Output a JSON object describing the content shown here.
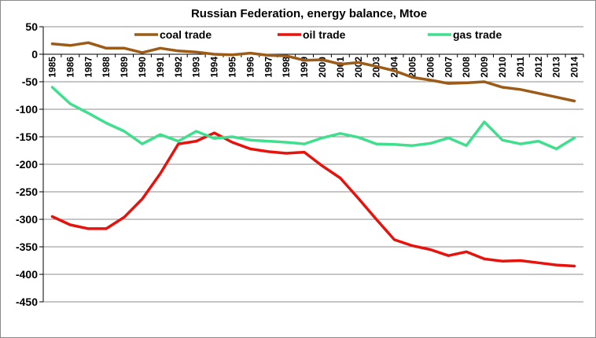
{
  "chart_data": {
    "type": "line",
    "title": "Russian Federation, energy balance, Mtoe",
    "xlabel": "",
    "ylabel": "",
    "x": [
      "1985",
      "1986",
      "1987",
      "1988",
      "1989",
      "1990",
      "1991",
      "1992",
      "1993",
      "1994",
      "1995",
      "1996",
      "1997",
      "1998",
      "1999",
      "2000",
      "2001",
      "2002",
      "2003",
      "2004",
      "2005",
      "2006",
      "2007",
      "2008",
      "2009",
      "2010",
      "2011",
      "2012",
      "2013",
      "2014"
    ],
    "ylim": [
      -450,
      50
    ],
    "yticks": [
      50,
      0,
      -50,
      -100,
      -150,
      -200,
      -250,
      -300,
      -350,
      -400,
      -450
    ],
    "grid": "horizontal",
    "legend_position": "top",
    "series": [
      {
        "name": "coal trade",
        "color": "#9c5b16",
        "values": [
          19,
          16,
          21,
          11,
          11,
          3,
          11,
          6,
          4,
          0,
          -1,
          2,
          -2,
          -3,
          -11,
          -10,
          -18,
          -15,
          -22,
          -30,
          -42,
          -47,
          -53,
          -52,
          -50,
          -60,
          -64,
          -71,
          -78,
          -85
        ]
      },
      {
        "name": "oil trade",
        "color": "#e8120c",
        "values": [
          -295,
          -310,
          -317,
          -317,
          -296,
          -263,
          -217,
          -163,
          -158,
          -143,
          -160,
          -172,
          -177,
          -180,
          -178,
          -203,
          -225,
          -262,
          -300,
          -337,
          -348,
          -355,
          -366,
          -359,
          -372,
          -376,
          -375,
          -379,
          -383,
          -385
        ]
      },
      {
        "name": "gas trade",
        "color": "#3ee08e",
        "values": [
          -60,
          -90,
          -107,
          -125,
          -140,
          -163,
          -146,
          -158,
          -140,
          -153,
          -150,
          -156,
          -158,
          -160,
          -163,
          -152,
          -144,
          -151,
          -163,
          -164,
          -166,
          -162,
          -152,
          -166,
          -123,
          -156,
          -163,
          -158,
          -172,
          -152
        ]
      }
    ]
  }
}
